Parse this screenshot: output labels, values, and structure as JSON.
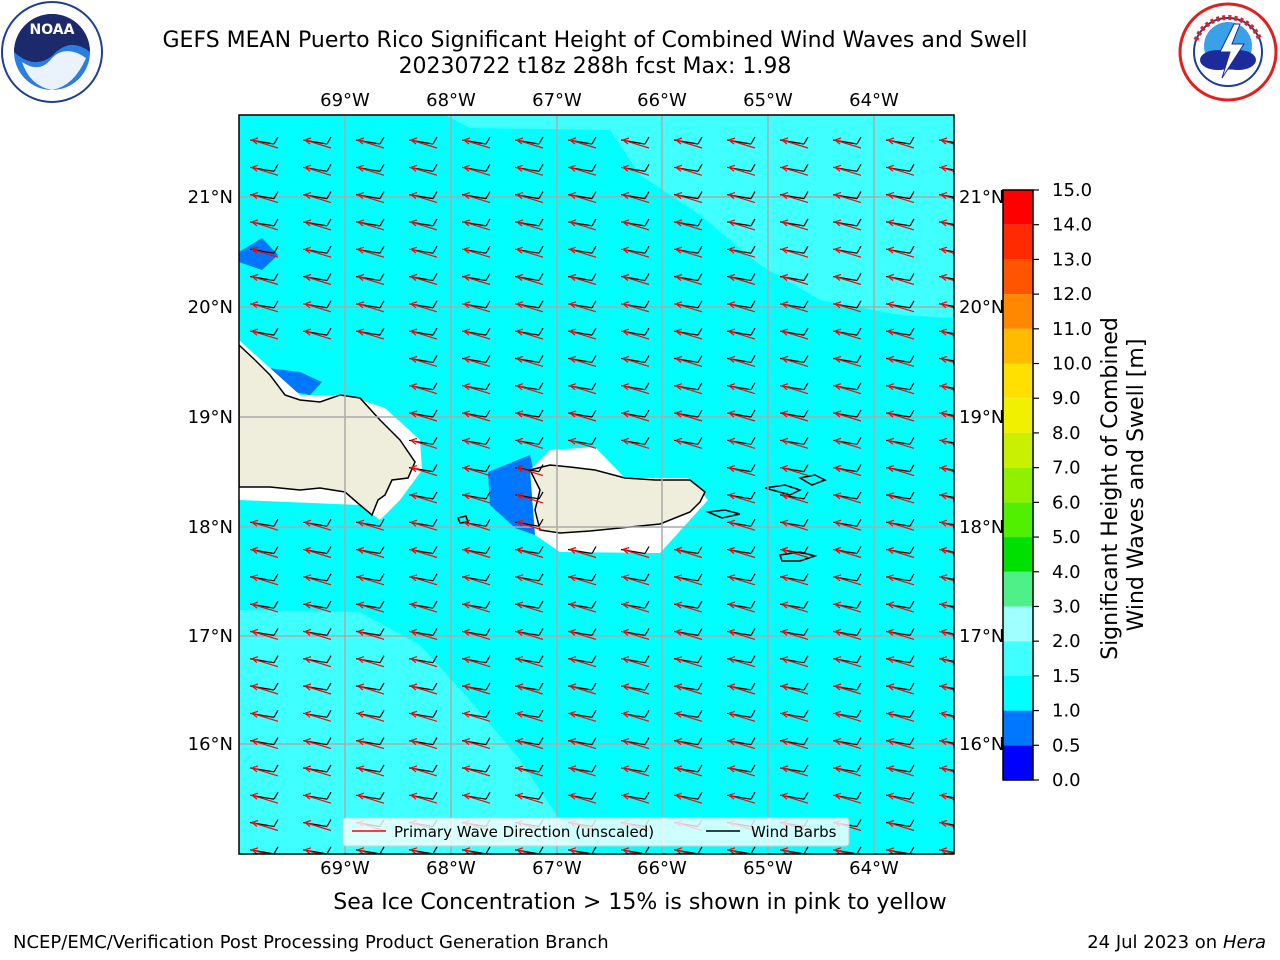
{
  "title_line1": "GEFS MEAN Puerto Rico Significant Height of Combined Wind Waves and Swell",
  "title_line2": "20230722 t18z 288h fcst   Max: 1.98",
  "lon_labels": [
    "69°W",
    "68°W",
    "67°W",
    "66°W",
    "65°W",
    "64°W"
  ],
  "lat_labels": [
    "21°N",
    "20°N",
    "19°N",
    "18°N",
    "17°N",
    "16°N"
  ],
  "colorbar": {
    "label_line1": "Significant Height of Combined",
    "label_line2": "Wind Waves and Swell [m]",
    "ticks": [
      "0.0",
      "0.5",
      "1.0",
      "1.5",
      "2.0",
      "3.0",
      "4.0",
      "5.0",
      "6.0",
      "7.0",
      "8.0",
      "9.0",
      "10.0",
      "11.0",
      "12.0",
      "13.0",
      "14.0",
      "15.0"
    ],
    "colors": [
      "#0000ff",
      "#0077ff",
      "#00ffff",
      "#40ffff",
      "#a0ffff",
      "#50f088",
      "#00e000",
      "#50f000",
      "#90f000",
      "#c8f000",
      "#f0f000",
      "#ffe000",
      "#ffbb00",
      "#ff8800",
      "#ff5500",
      "#ff2a00",
      "#ff0000"
    ]
  },
  "legend": {
    "wave_direction": "Primary Wave Direction (unscaled)",
    "wind_barbs": "Wind Barbs",
    "wave_color": "#ff0000",
    "barb_color": "#000000"
  },
  "map_colors": {
    "sea_main": "#00ffff",
    "sea_light": "#40ffff",
    "sea_dark": "#0077ff",
    "land": "#efeedd"
  },
  "subcaption": "Sea Ice Concentration > 15% is shown in pink to yellow",
  "footer_left": "NCEP/EMC/Verification Post Processing Product Generation Branch",
  "footer_date": "24 Jul 2023 on ",
  "footer_machine": "Hera",
  "logos": {
    "left": "noaa-logo",
    "right": "nws-logo",
    "noaa_text": "NOAA"
  }
}
